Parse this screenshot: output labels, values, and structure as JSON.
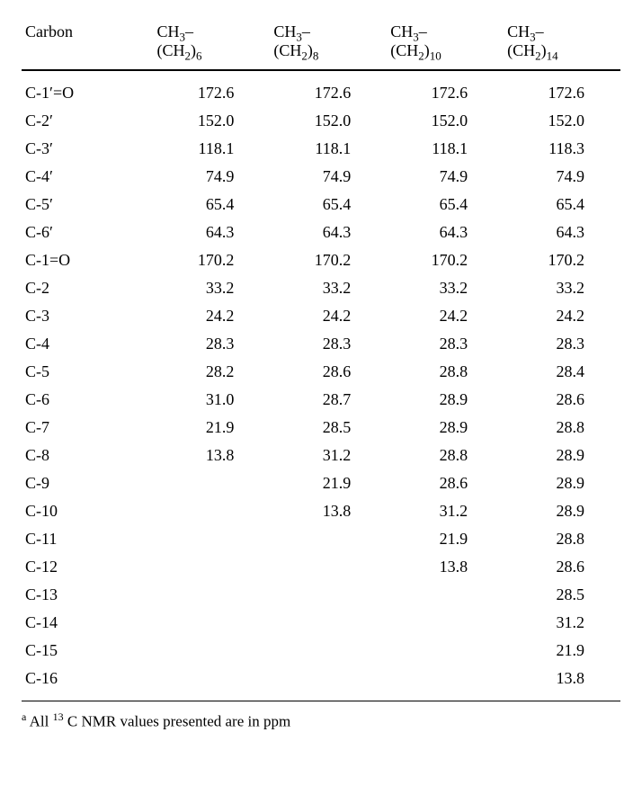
{
  "table": {
    "columns": [
      {
        "label": "Carbon",
        "width": "22%",
        "type": "text"
      },
      {
        "label_top": "CH",
        "sub1": "3",
        "label_mid": "–",
        "label_bot": "(CH",
        "sub2": "2",
        "label_bot2": ")",
        "sub3": "6",
        "width": "19.5%",
        "type": "num"
      },
      {
        "label_top": "CH",
        "sub1": "3",
        "label_mid": "–",
        "label_bot": "(CH",
        "sub2": "2",
        "label_bot2": ")",
        "sub3": "8",
        "width": "19.5%",
        "type": "num"
      },
      {
        "label_top": "CH",
        "sub1": "3",
        "label_mid": "–",
        "label_bot": "(CH",
        "sub2": "2",
        "label_bot2": ")",
        "sub3": "10",
        "width": "19.5%",
        "type": "num"
      },
      {
        "label_top": "CH",
        "sub1": "3",
        "label_mid": "–",
        "label_bot": "(CH",
        "sub2": "2",
        "label_bot2": ")",
        "sub3": "14",
        "width": "19.5%",
        "type": "num"
      }
    ],
    "rows": [
      [
        "C-1′=O",
        "172.6",
        "172.6",
        "172.6",
        "172.6"
      ],
      [
        "C-2′",
        "152.0",
        "152.0",
        "152.0",
        "152.0"
      ],
      [
        "C-3′",
        "118.1",
        "118.1",
        "118.1",
        "118.3"
      ],
      [
        "C-4′",
        "74.9",
        "74.9",
        "74.9",
        "74.9"
      ],
      [
        "C-5′",
        "65.4",
        "65.4",
        "65.4",
        "65.4"
      ],
      [
        "C-6′",
        "64.3",
        "64.3",
        "64.3",
        "64.3"
      ],
      [
        "C-1=O",
        "170.2",
        "170.2",
        "170.2",
        "170.2"
      ],
      [
        "C-2",
        "33.2",
        "33.2",
        "33.2",
        "33.2"
      ],
      [
        "C-3",
        "24.2",
        "24.2",
        "24.2",
        "24.2"
      ],
      [
        "C-4",
        "28.3",
        "28.3",
        "28.3",
        "28.3"
      ],
      [
        "C-5",
        "28.2",
        "28.6",
        "28.8",
        "28.4"
      ],
      [
        "C-6",
        "31.0",
        "28.7",
        "28.9",
        "28.6"
      ],
      [
        "C-7",
        "21.9",
        "28.5",
        "28.9",
        "28.8"
      ],
      [
        "C-8",
        "13.8",
        "31.2",
        "28.8",
        "28.9"
      ],
      [
        "C-9",
        "",
        "21.9",
        "28.6",
        "28.9"
      ],
      [
        "C-10",
        "",
        "13.8",
        "31.2",
        "28.9"
      ],
      [
        "C-11",
        "",
        "",
        "21.9",
        "28.8"
      ],
      [
        "C-12",
        "",
        "",
        "13.8",
        "28.6"
      ],
      [
        "C-13",
        "",
        "",
        "",
        "28.5"
      ],
      [
        "C-14",
        "",
        "",
        "",
        "31.2"
      ],
      [
        "C-15",
        "",
        "",
        "",
        "21.9"
      ],
      [
        "C-16",
        "",
        "",
        "",
        "13.8"
      ]
    ]
  },
  "footnote": {
    "marker": "a",
    "text_pre": " All ",
    "sup": "13",
    "text_mid": " C NMR values presented are in ppm"
  }
}
